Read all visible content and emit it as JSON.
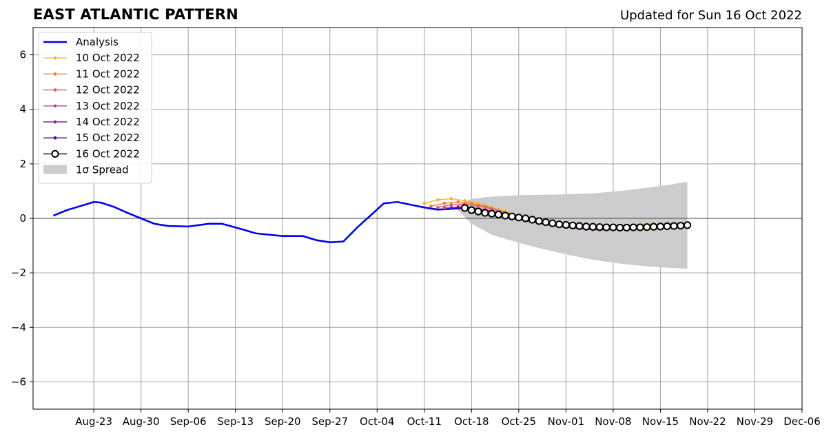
{
  "title": "EAST ATLANTIC PATTERN",
  "subtitle": "Updated for Sun 16 Oct 2022",
  "chart_data": {
    "type": "line",
    "title": "EAST ATLANTIC PATTERN",
    "xlabel": "",
    "ylabel": "",
    "x_axis": "date",
    "xlim": [
      "2022-08-14",
      "2022-12-06"
    ],
    "ylim": [
      -7,
      7
    ],
    "xticks": [
      "2022-08-23",
      "2022-08-30",
      "2022-09-06",
      "2022-09-13",
      "2022-09-20",
      "2022-09-27",
      "2022-10-04",
      "2022-10-11",
      "2022-10-18",
      "2022-10-25",
      "2022-11-01",
      "2022-11-08",
      "2022-11-15",
      "2022-11-22",
      "2022-11-29",
      "2022-12-06"
    ],
    "xtick_labels": [
      "Aug-23",
      "Aug-30",
      "Sep-06",
      "Sep-13",
      "Sep-20",
      "Sep-27",
      "Oct-04",
      "Oct-11",
      "Oct-18",
      "Oct-25",
      "Nov-01",
      "Nov-08",
      "Nov-15",
      "Nov-22",
      "Nov-29",
      "Dec-06"
    ],
    "yticks": [
      -6,
      -4,
      -2,
      0,
      2,
      4,
      6
    ],
    "ytick_labels": [
      "−6",
      "−4",
      "−2",
      "0",
      "2",
      "4",
      "6"
    ],
    "grid": true,
    "legend_position": "top-left",
    "legend": [
      "Analysis",
      "10 Oct 2022",
      "11 Oct 2022",
      "12 Oct 2022",
      "13 Oct 2022",
      "14 Oct 2022",
      "15 Oct 2022",
      "16 Oct 2022",
      "1σ Spread"
    ],
    "analysis": {
      "name": "Analysis",
      "color": "#0000ee",
      "x": [
        "2022-08-17",
        "2022-08-19",
        "2022-08-21",
        "2022-08-23",
        "2022-08-24",
        "2022-08-26",
        "2022-08-28",
        "2022-08-30",
        "2022-09-01",
        "2022-09-03",
        "2022-09-06",
        "2022-09-09",
        "2022-09-11",
        "2022-09-14",
        "2022-09-16",
        "2022-09-18",
        "2022-09-20",
        "2022-09-23",
        "2022-09-25",
        "2022-09-27",
        "2022-09-29",
        "2022-10-01",
        "2022-10-03",
        "2022-10-05",
        "2022-10-07",
        "2022-10-09",
        "2022-10-11",
        "2022-10-13",
        "2022-10-15",
        "2022-10-17"
      ],
      "values": [
        0.1,
        0.3,
        0.45,
        0.6,
        0.58,
        0.42,
        0.2,
        0.0,
        -0.2,
        -0.28,
        -0.3,
        -0.2,
        -0.2,
        -0.4,
        -0.55,
        -0.6,
        -0.65,
        -0.65,
        -0.8,
        -0.88,
        -0.85,
        -0.35,
        0.1,
        0.55,
        0.6,
        0.5,
        0.4,
        0.32,
        0.35,
        0.38
      ]
    },
    "series": [
      {
        "name": "10 Oct 2022",
        "color": "#fbb22f",
        "x": [
          "2022-10-11",
          "2022-10-13",
          "2022-10-15",
          "2022-10-17",
          "2022-10-19",
          "2022-10-21",
          "2022-10-23",
          "2022-10-25",
          "2022-10-27",
          "2022-10-29",
          "2022-10-31",
          "2022-11-02",
          "2022-11-04",
          "2022-11-06",
          "2022-11-08",
          "2022-11-10",
          "2022-11-12",
          "2022-11-14"
        ],
        "values": [
          0.55,
          0.68,
          0.72,
          0.65,
          0.55,
          0.4,
          0.25,
          0.1,
          -0.05,
          -0.15,
          -0.2,
          -0.25,
          -0.3,
          -0.3,
          -0.3,
          -0.25,
          -0.22,
          -0.2
        ]
      },
      {
        "name": "11 Oct 2022",
        "color": "#f37a3a",
        "x": [
          "2022-10-12",
          "2022-10-14",
          "2022-10-16",
          "2022-10-18",
          "2022-10-20",
          "2022-10-22",
          "2022-10-24",
          "2022-10-26",
          "2022-10-28",
          "2022-10-30",
          "2022-11-01",
          "2022-11-03",
          "2022-11-05",
          "2022-11-07",
          "2022-11-09",
          "2022-11-11"
        ],
        "values": [
          0.45,
          0.55,
          0.6,
          0.55,
          0.45,
          0.3,
          0.15,
          0.0,
          -0.1,
          -0.2,
          -0.28,
          -0.32,
          -0.35,
          -0.35,
          -0.32,
          -0.3
        ]
      },
      {
        "name": "12 Oct 2022",
        "color": "#e0566b",
        "x": [
          "2022-10-13",
          "2022-10-15",
          "2022-10-17",
          "2022-10-19",
          "2022-10-21",
          "2022-10-23",
          "2022-10-25",
          "2022-10-27",
          "2022-10-29",
          "2022-10-31",
          "2022-11-02",
          "2022-11-04",
          "2022-11-06",
          "2022-11-08",
          "2022-11-10"
        ],
        "values": [
          0.4,
          0.5,
          0.52,
          0.45,
          0.35,
          0.2,
          0.05,
          -0.08,
          -0.2,
          -0.28,
          -0.35,
          -0.38,
          -0.4,
          -0.38,
          -0.35
        ]
      },
      {
        "name": "13 Oct 2022",
        "color": "#c13e8f",
        "x": [
          "2022-10-14",
          "2022-10-16",
          "2022-10-18",
          "2022-10-20",
          "2022-10-22",
          "2022-10-24",
          "2022-10-26",
          "2022-10-28",
          "2022-10-30",
          "2022-11-01",
          "2022-11-03",
          "2022-11-05",
          "2022-11-07",
          "2022-11-09",
          "2022-11-11"
        ],
        "values": [
          0.38,
          0.42,
          0.4,
          0.32,
          0.2,
          0.08,
          -0.05,
          -0.15,
          -0.25,
          -0.32,
          -0.38,
          -0.42,
          -0.42,
          -0.4,
          -0.38
        ]
      },
      {
        "name": "14 Oct 2022",
        "color": "#8e1fa8",
        "x": [
          "2022-10-15",
          "2022-10-17",
          "2022-10-19",
          "2022-10-21",
          "2022-10-23",
          "2022-10-25",
          "2022-10-27",
          "2022-10-29",
          "2022-10-31",
          "2022-11-02",
          "2022-11-04",
          "2022-11-06",
          "2022-11-08",
          "2022-11-10",
          "2022-11-12"
        ],
        "values": [
          0.4,
          0.38,
          0.32,
          0.22,
          0.1,
          -0.02,
          -0.12,
          -0.22,
          -0.3,
          -0.35,
          -0.4,
          -0.42,
          -0.4,
          -0.38,
          -0.35
        ]
      },
      {
        "name": "15 Oct 2022",
        "color": "#4d0b8f",
        "x": [
          "2022-10-16",
          "2022-10-18",
          "2022-10-20",
          "2022-10-22",
          "2022-10-24",
          "2022-10-26",
          "2022-10-28",
          "2022-10-30",
          "2022-11-01",
          "2022-11-03",
          "2022-11-05",
          "2022-11-07",
          "2022-11-09",
          "2022-11-11",
          "2022-11-13"
        ],
        "values": [
          0.38,
          0.32,
          0.22,
          0.12,
          0.02,
          -0.08,
          -0.18,
          -0.25,
          -0.3,
          -0.35,
          -0.38,
          -0.38,
          -0.36,
          -0.33,
          -0.3
        ]
      },
      {
        "name": "16 Oct 2022",
        "color": "#000000",
        "x": [
          "2022-10-17",
          "2022-10-18",
          "2022-10-19",
          "2022-10-20",
          "2022-10-21",
          "2022-10-22",
          "2022-10-23",
          "2022-10-24",
          "2022-10-25",
          "2022-10-26",
          "2022-10-27",
          "2022-10-28",
          "2022-10-29",
          "2022-10-30",
          "2022-10-31",
          "2022-11-01",
          "2022-11-02",
          "2022-11-03",
          "2022-11-04",
          "2022-11-05",
          "2022-11-06",
          "2022-11-07",
          "2022-11-08",
          "2022-11-09",
          "2022-11-10",
          "2022-11-11",
          "2022-11-12",
          "2022-11-13",
          "2022-11-14",
          "2022-11-15",
          "2022-11-16",
          "2022-11-17",
          "2022-11-18",
          "2022-11-19"
        ],
        "values": [
          0.38,
          0.3,
          0.25,
          0.2,
          0.17,
          0.14,
          0.1,
          0.07,
          0.03,
          0.0,
          -0.05,
          -0.1,
          -0.14,
          -0.18,
          -0.22,
          -0.24,
          -0.26,
          -0.28,
          -0.3,
          -0.31,
          -0.32,
          -0.33,
          -0.33,
          -0.34,
          -0.34,
          -0.33,
          -0.33,
          -0.32,
          -0.31,
          -0.3,
          -0.29,
          -0.28,
          -0.27,
          -0.25
        ]
      }
    ],
    "spread": {
      "name": "1σ Spread",
      "color": "#cccccc",
      "x": [
        "2022-10-16",
        "2022-10-18",
        "2022-10-21",
        "2022-10-25",
        "2022-10-29",
        "2022-11-01",
        "2022-11-05",
        "2022-11-09",
        "2022-11-13",
        "2022-11-16",
        "2022-11-19"
      ],
      "upper": [
        0.5,
        0.72,
        0.8,
        0.85,
        0.87,
        0.88,
        0.92,
        1.0,
        1.12,
        1.22,
        1.35
      ],
      "lower": [
        0.3,
        -0.2,
        -0.6,
        -0.9,
        -1.15,
        -1.32,
        -1.52,
        -1.66,
        -1.76,
        -1.81,
        -1.85
      ]
    }
  }
}
